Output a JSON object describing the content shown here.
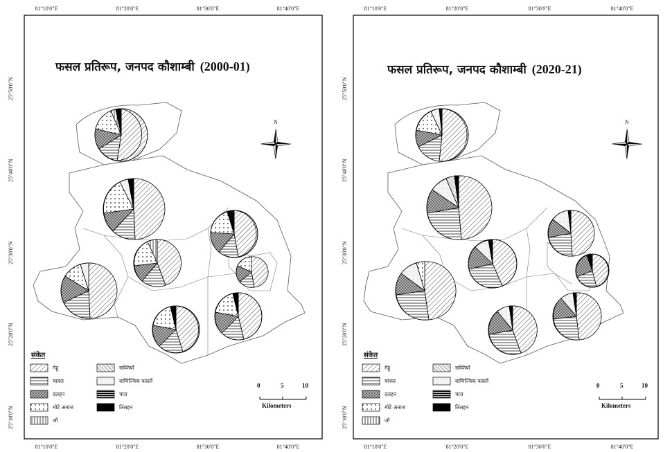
{
  "left_panel": {
    "title": "फसल प्रतिरूप, जनपद कौशाम्बी",
    "year": "(2000-01)",
    "top_ticks": [
      "81°10'0\"E",
      "81°20'0\"E",
      "81°30'0\"E",
      "81°40'0\"E"
    ],
    "bottom_ticks": [
      "81°10'0\"E",
      "81°20'0\"E",
      "81°30'0\"E",
      "81°40'0\"E"
    ],
    "left_ticks": [
      "25°50'0\"N",
      "25°40'0\"N",
      "25°30'0\"N",
      "25°20'0\"N",
      "25°10'0\"N"
    ]
  },
  "right_panel": {
    "title": "फसल प्रतिरूप, जनपद कौशाम्बी",
    "year": "(2020-21)",
    "top_ticks": [
      "81°10'0\"E",
      "81°20'0\"E",
      "81°30'0\"E",
      "81°40'0\"E"
    ],
    "bottom_ticks": [
      "81°10'0\"E",
      "81°20'0\"E",
      "81°30'0\"E",
      "81°40'0\"E"
    ],
    "left_ticks": [
      "25°50'0\"N",
      "25°40'0\"N",
      "25°30'0\"N",
      "25°20'0\"N",
      "25°10'0\"N"
    ]
  },
  "legend": {
    "title": "संकेत",
    "items": [
      {
        "label": "गेहूं",
        "pattern": "diag"
      },
      {
        "label": "चावल",
        "pattern": "horiz"
      },
      {
        "label": "दलहन",
        "pattern": "cross"
      },
      {
        "label": "मोटे अनाज",
        "pattern": "dots"
      },
      {
        "label": "जौ",
        "pattern": "vert"
      },
      {
        "label": "सब्जियाँ",
        "pattern": "diag2"
      },
      {
        "label": "वाणिज्यिक फसलें",
        "pattern": "light"
      },
      {
        "label": "चारा",
        "pattern": "dense"
      },
      {
        "label": "तिलहन",
        "pattern": "black"
      }
    ]
  },
  "scale": {
    "labels": [
      "0",
      "5",
      "10"
    ],
    "unit": "Kilometers"
  },
  "north_label": "N"
}
